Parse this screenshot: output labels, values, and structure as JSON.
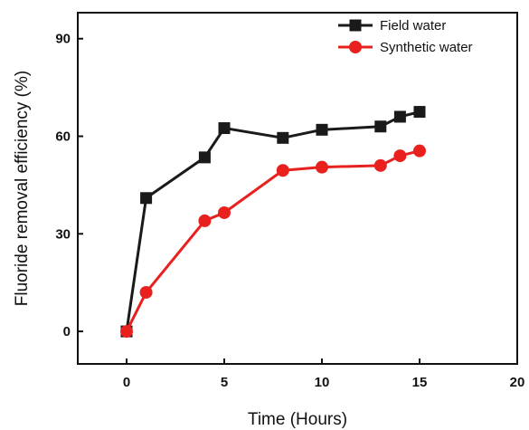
{
  "chart_data": {
    "type": "line",
    "title": "",
    "xlabel": "Time (Hours)",
    "ylabel": "Fluoride removal efficiency (%)",
    "xlim": [
      -2.5,
      20
    ],
    "ylim": [
      -10,
      98
    ],
    "xticks": [
      0,
      5,
      10,
      15,
      20
    ],
    "yticks": [
      0,
      30,
      60,
      90
    ],
    "grid": false,
    "legend_position": "top-right",
    "series": [
      {
        "name": "Field water",
        "color": "#1a1a1a",
        "marker": "square",
        "x": [
          0,
          1,
          4,
          5,
          8,
          10,
          13,
          14,
          15
        ],
        "y": [
          0,
          41,
          53.5,
          62.5,
          59.5,
          62,
          63,
          66,
          67.5
        ]
      },
      {
        "name": "Synthetic water",
        "color": "#e8211f",
        "marker": "circle",
        "x": [
          0,
          1,
          4,
          5,
          8,
          10,
          13,
          14,
          15
        ],
        "y": [
          0,
          12,
          34,
          36.5,
          49.5,
          50.5,
          51,
          54,
          55.5
        ]
      }
    ]
  }
}
